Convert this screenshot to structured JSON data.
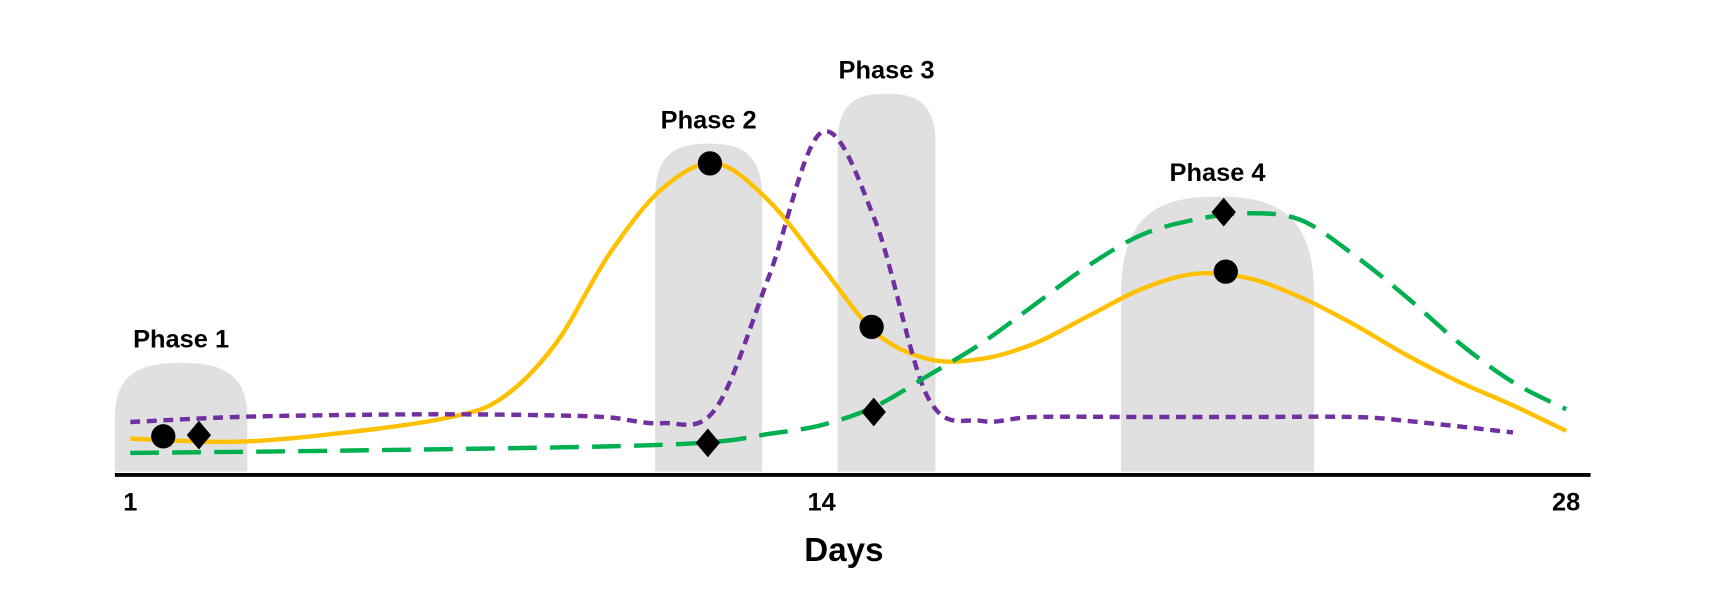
{
  "chart_data": {
    "type": "line",
    "xlabel": "Days",
    "xlim": [
      0.71,
      28.46
    ],
    "xticks": [
      1,
      14,
      28
    ],
    "ylim": [
      0,
      100
    ],
    "phases": [
      {
        "label": "Phase 1",
        "start": 0.71,
        "end": 3.2,
        "height": 29
      },
      {
        "label": "Phase 2",
        "start": 10.87,
        "end": 12.88,
        "height": 85.7
      },
      {
        "label": "Phase 3",
        "start": 14.3,
        "end": 16.14,
        "height": 98.6
      },
      {
        "label": "Phase 4",
        "start": 19.63,
        "end": 23.26,
        "height": 72
      }
    ],
    "phase_color": "#e0e0e0",
    "series": [
      {
        "color": "#ffc000",
        "dash": "solid",
        "x": [
          1,
          3,
          5,
          7,
          8,
          9,
          10,
          11,
          12,
          13,
          14,
          15,
          16,
          17,
          18,
          19,
          20,
          21,
          22,
          23,
          24,
          25,
          26,
          27,
          28
        ],
        "values": [
          9.4,
          8.6,
          10.9,
          14.9,
          20,
          34,
          57,
          74,
          80.6,
          71,
          54,
          37,
          30,
          30,
          34,
          41,
          48,
          52,
          51,
          46,
          39,
          31,
          24,
          18,
          11.4
        ]
      },
      {
        "color": "#7030a0",
        "dash": "short",
        "x": [
          1,
          3,
          5,
          7,
          9,
          10,
          11,
          12,
          13,
          14,
          15,
          16,
          17,
          18,
          20,
          22,
          24,
          25,
          27
        ],
        "values": [
          13.7,
          15,
          15.5,
          15.7,
          15.4,
          14.9,
          13.4,
          17,
          51,
          88.6,
          66,
          20,
          14,
          15,
          15,
          15,
          15,
          14,
          11
        ]
      },
      {
        "color": "#00b050",
        "dash": "long",
        "x": [
          1,
          5,
          10,
          12,
          13,
          14,
          15,
          16,
          17,
          18,
          19,
          20,
          21,
          22,
          23,
          24,
          25,
          26,
          27,
          28
        ],
        "values": [
          5.7,
          6.3,
          7.4,
          8.6,
          10.6,
          12.9,
          17.7,
          25.7,
          34,
          44,
          54,
          62,
          66,
          67.7,
          66,
          57,
          46,
          34,
          24,
          17
        ]
      }
    ],
    "points": [
      {
        "shape": "circle",
        "x": 1.62,
        "value": 10
      },
      {
        "shape": "diamond",
        "x": 2.29,
        "value": 10.3
      },
      {
        "shape": "circle",
        "x": 11.9,
        "value": 80.6
      },
      {
        "shape": "diamond",
        "x": 11.86,
        "value": 8.3
      },
      {
        "shape": "circle",
        "x": 14.94,
        "value": 38.3
      },
      {
        "shape": "diamond",
        "x": 14.98,
        "value": 16.3
      },
      {
        "shape": "circle",
        "x": 21.6,
        "value": 52.6
      },
      {
        "shape": "diamond",
        "x": 21.56,
        "value": 68
      }
    ]
  }
}
